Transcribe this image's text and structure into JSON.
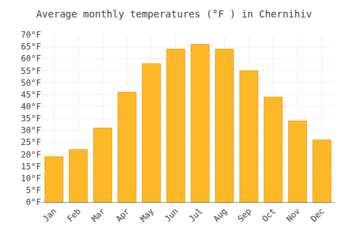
{
  "chart_data": {
    "type": "bar",
    "title": "Average monthly temperatures (°F ) in Chernihiv",
    "categories": [
      "Jan",
      "Feb",
      "Mar",
      "Apr",
      "May",
      "Jun",
      "Jul",
      "Aug",
      "Sep",
      "Oct",
      "Nov",
      "Dec"
    ],
    "values": [
      19,
      22,
      31,
      46,
      58,
      64,
      66,
      64,
      55,
      44,
      34,
      26
    ],
    "color": "#FDB827",
    "ylim": [
      0,
      70
    ],
    "yticks": [
      {
        "value": 0,
        "label": "0°F"
      },
      {
        "value": 5,
        "label": "5°F"
      },
      {
        "value": 10,
        "label": "10°F"
      },
      {
        "value": 15,
        "label": "15°F"
      },
      {
        "value": 20,
        "label": "20°F"
      },
      {
        "value": 25,
        "label": "25°F"
      },
      {
        "value": 30,
        "label": "30°F"
      },
      {
        "value": 35,
        "label": "35°F"
      },
      {
        "value": 40,
        "label": "40°F"
      },
      {
        "value": 45,
        "label": "45°F"
      },
      {
        "value": 50,
        "label": "50°F"
      },
      {
        "value": 55,
        "label": "55°F"
      },
      {
        "value": 60,
        "label": "60°F"
      },
      {
        "value": 65,
        "label": "65°F"
      },
      {
        "value": 70,
        "label": "70°F"
      }
    ],
    "grid": true
  }
}
